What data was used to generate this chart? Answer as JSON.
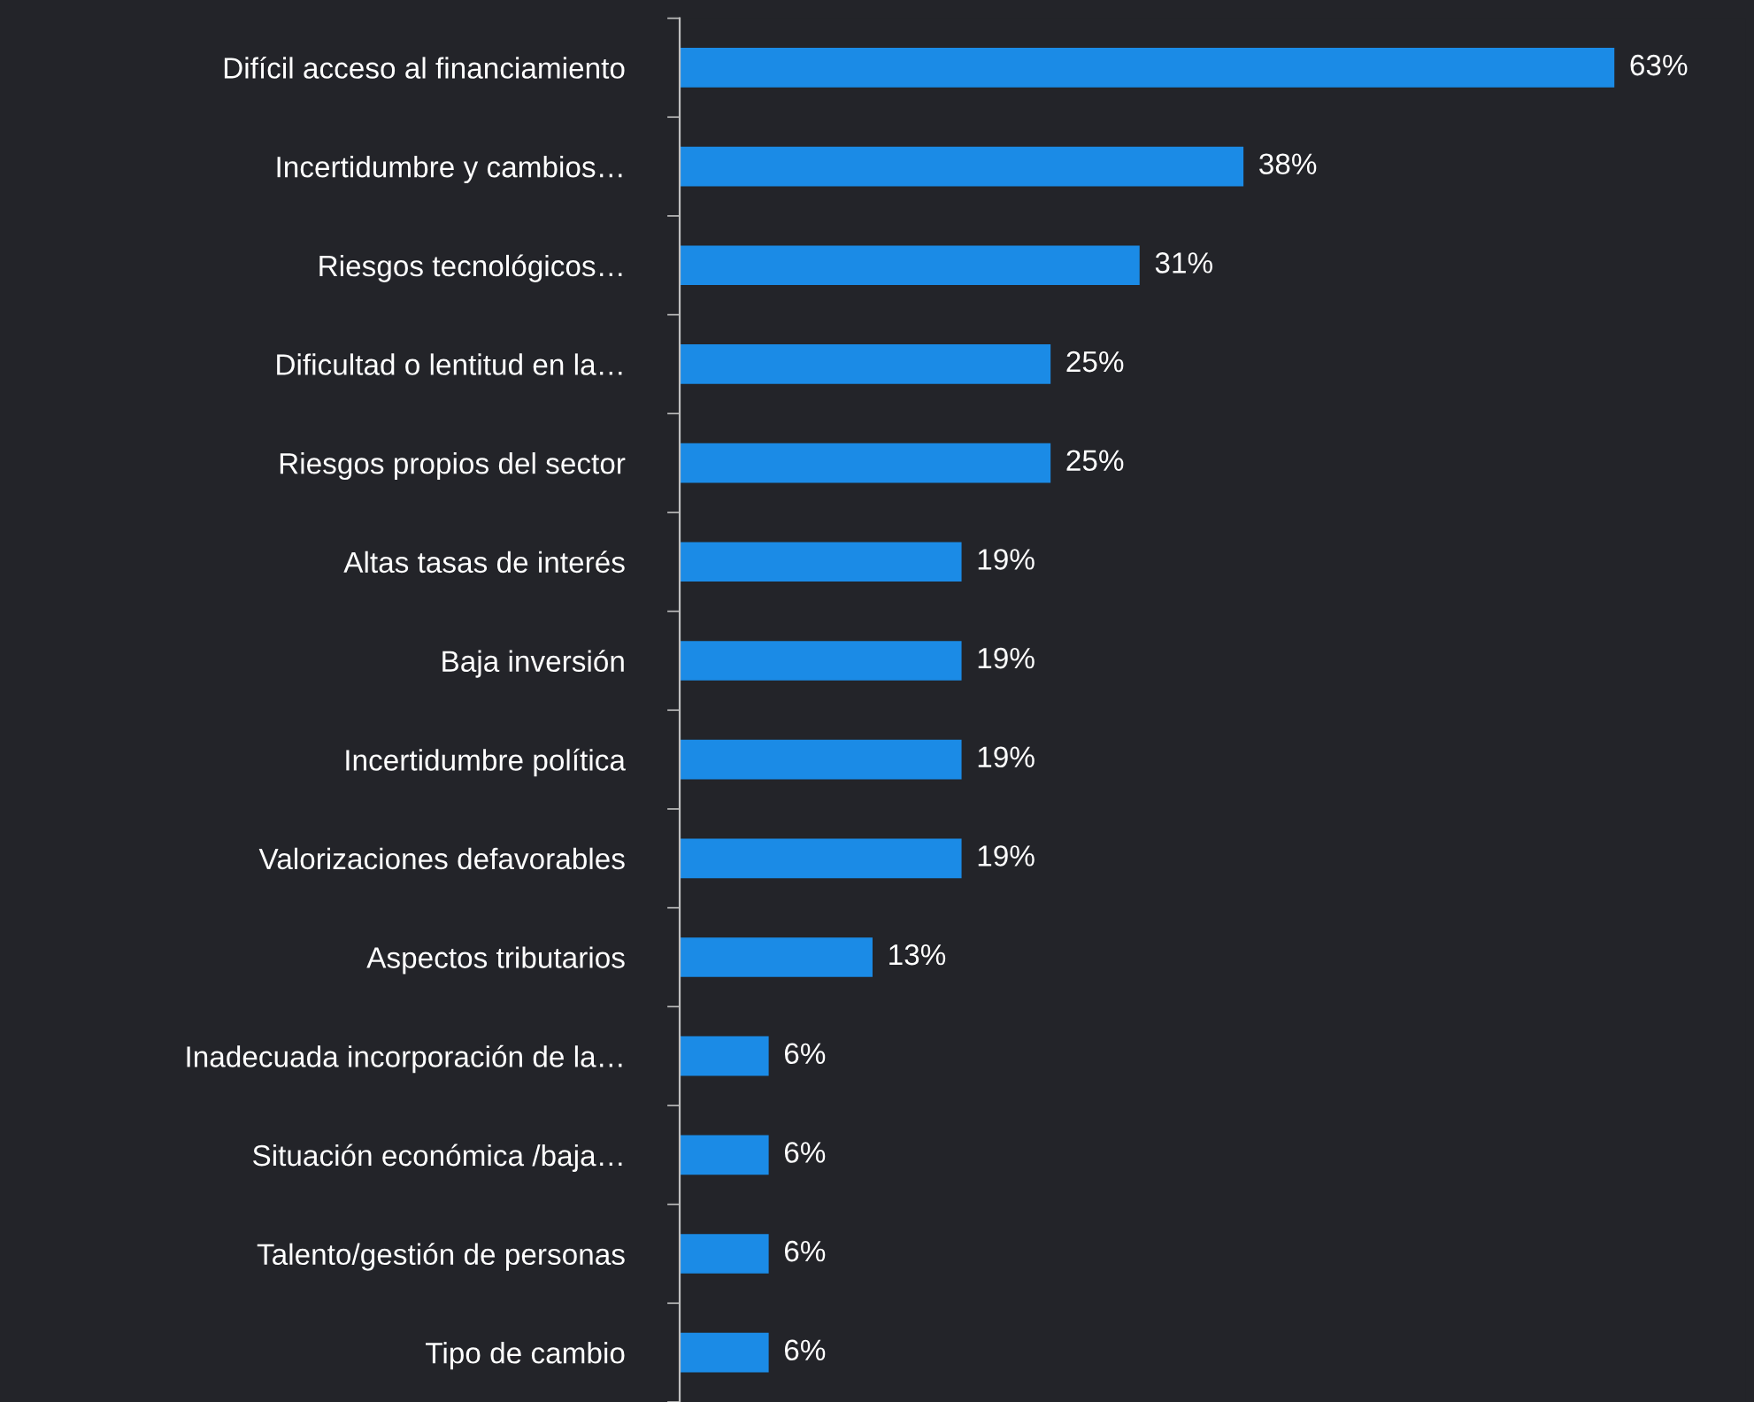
{
  "chart_data": {
    "type": "bar",
    "orientation": "horizontal",
    "categories": [
      "Difícil acceso al financiamiento",
      "Incertidumbre y cambios…",
      "Riesgos tecnológicos…",
      "Dificultad o lentitud en la…",
      "Riesgos propios del sector",
      "Altas tasas de interés",
      "Baja inversión",
      "Incertidumbre política",
      "Valorizaciones defavorables",
      "Aspectos tributarios",
      "Inadecuada incorporación de la…",
      "Situación económica /baja…",
      "Talento/gestión de personas",
      "Tipo de cambio"
    ],
    "values": [
      63,
      38,
      31,
      25,
      25,
      19,
      19,
      19,
      19,
      13,
      6,
      6,
      6,
      6
    ],
    "value_labels": [
      "63%",
      "38%",
      "31%",
      "25%",
      "25%",
      "19%",
      "19%",
      "19%",
      "19%",
      "13%",
      "6%",
      "6%",
      "6%",
      "6%"
    ],
    "color": "#1b8be6",
    "grid": false,
    "legend": false
  }
}
